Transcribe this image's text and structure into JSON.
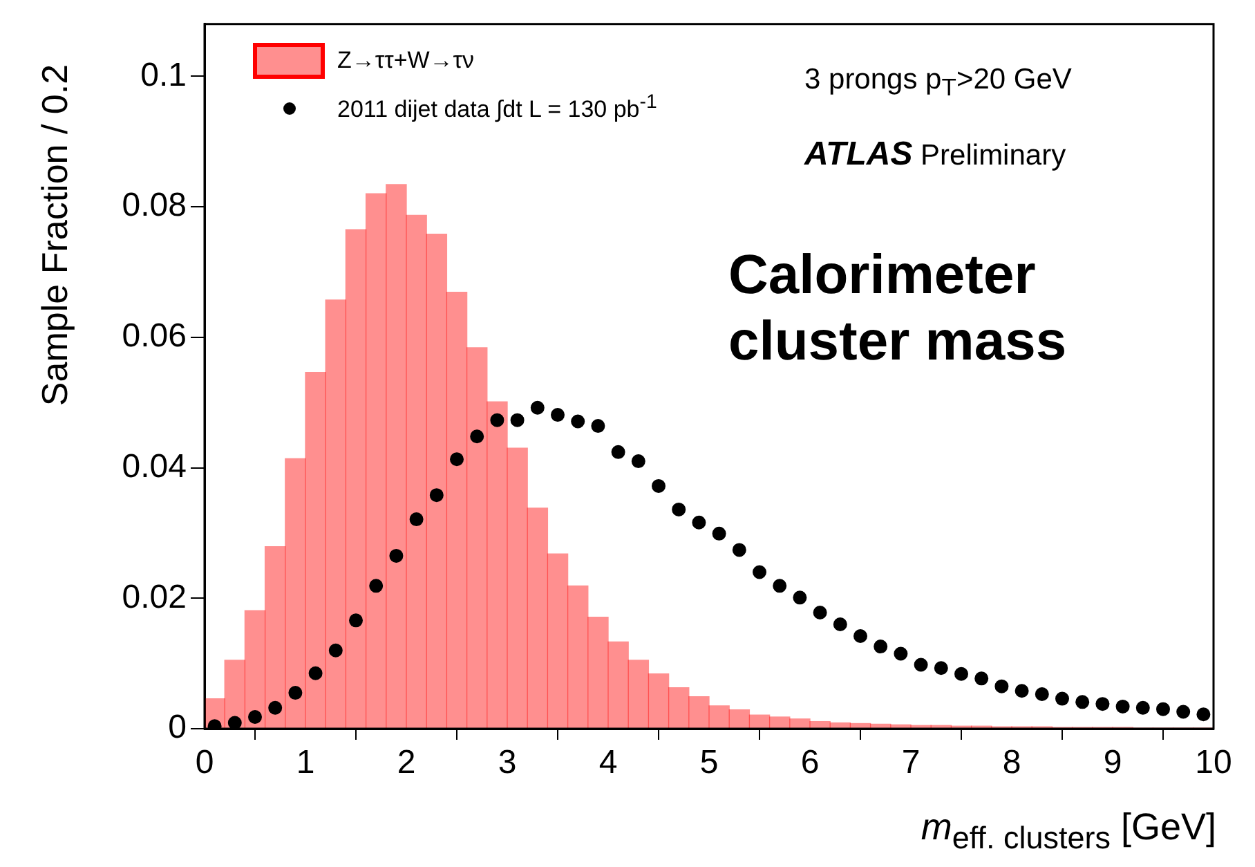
{
  "chart_data": {
    "type": "histogram",
    "xlabel": "m$_{eff. clusters}$ [GeV]",
    "ylabel": "Sample Fraction / 0.2",
    "xlim": [
      0,
      10
    ],
    "xticks": [
      0,
      1,
      2,
      3,
      4,
      5,
      6,
      7,
      8,
      9,
      10
    ],
    "ylim": [
      0,
      0.108
    ],
    "yticks": [
      0,
      0.02,
      0.04,
      0.06,
      0.08,
      0.1
    ],
    "grid": false,
    "legend": "top left",
    "annotations": [
      "3 prongs p$_{T}$>20 GeV",
      "ATLAS Preliminary",
      "Calorimeter cluster mass"
    ],
    "series": [
      {
        "name": "Z→ττ+W→τν",
        "color": "#ff0000",
        "bins": [
          0,
          0.2,
          0.4,
          0.6,
          0.8,
          1,
          1.2,
          1.4,
          1.6,
          1.8,
          2,
          2.2,
          2.4,
          2.6,
          2.8,
          3,
          3.2,
          3.4,
          3.6,
          3.8,
          4,
          4.2,
          4.4,
          4.6,
          4.8,
          5,
          5.2,
          5.4,
          5.6,
          5.8,
          6,
          6.2,
          6.4,
          6.6,
          6.8,
          7,
          7.2,
          7.4,
          7.6,
          7.8,
          8,
          8.2,
          8.4,
          8.6,
          8.8,
          9,
          9.2,
          9.4,
          9.6,
          9.8,
          10
        ],
        "values": [
          0.0046,
          0.0105,
          0.0181,
          0.0279,
          0.0414,
          0.0546,
          0.0657,
          0.0765,
          0.082,
          0.0834,
          0.0787,
          0.0758,
          0.0669,
          0.0584,
          0.0501,
          0.043,
          0.0338,
          0.0268,
          0.0219,
          0.0171,
          0.0133,
          0.0105,
          0.0084,
          0.0063,
          0.0049,
          0.0035,
          0.0029,
          0.0021,
          0.0018,
          0.0015,
          0.0011,
          0.0009,
          0.0008,
          0.0007,
          0.0006,
          0.0005,
          0.0005,
          0.0004,
          0.0004,
          0.0003,
          0.0003,
          0.0003,
          0.0002,
          0.0002,
          0.0002,
          0.0002,
          0.0001,
          0.0001,
          0.0001,
          0.0001
        ]
      },
      {
        "type": "scatter",
        "name": "2011 dijet data ∫dt L = 130 pb$^{-1}$",
        "color": "#000000",
        "marker": "circle",
        "x": [
          0.1,
          0.3,
          0.5,
          0.7,
          0.9,
          1.1,
          1.3,
          1.5,
          1.7,
          1.9,
          2.1,
          2.3,
          2.5,
          2.7,
          2.9,
          3.1,
          3.3,
          3.5,
          3.7,
          3.9,
          4.1,
          4.3,
          4.5,
          4.7,
          4.9,
          5.1,
          5.3,
          5.5,
          5.7,
          5.9,
          6.1,
          6.3,
          6.5,
          6.7,
          6.9,
          7.1,
          7.3,
          7.5,
          7.7,
          7.9,
          8.1,
          8.3,
          8.5,
          8.7,
          8.9,
          9.1,
          9.3,
          9.5,
          9.7,
          9.9
        ],
        "values": [
          0.0004,
          0.0009,
          0.0018,
          0.0032,
          0.0055,
          0.0085,
          0.012,
          0.0166,
          0.0219,
          0.0265,
          0.0321,
          0.0358,
          0.0413,
          0.0448,
          0.0473,
          0.0473,
          0.0492,
          0.0481,
          0.0471,
          0.0464,
          0.0424,
          0.041,
          0.0372,
          0.0336,
          0.0316,
          0.0299,
          0.0274,
          0.024,
          0.0219,
          0.0201,
          0.0178,
          0.016,
          0.0142,
          0.0126,
          0.0115,
          0.0098,
          0.0093,
          0.0084,
          0.0077,
          0.0065,
          0.0058,
          0.0053,
          0.0046,
          0.0041,
          0.0038,
          0.0034,
          0.0032,
          0.003,
          0.0026,
          0.0022
        ]
      }
    ]
  }
}
